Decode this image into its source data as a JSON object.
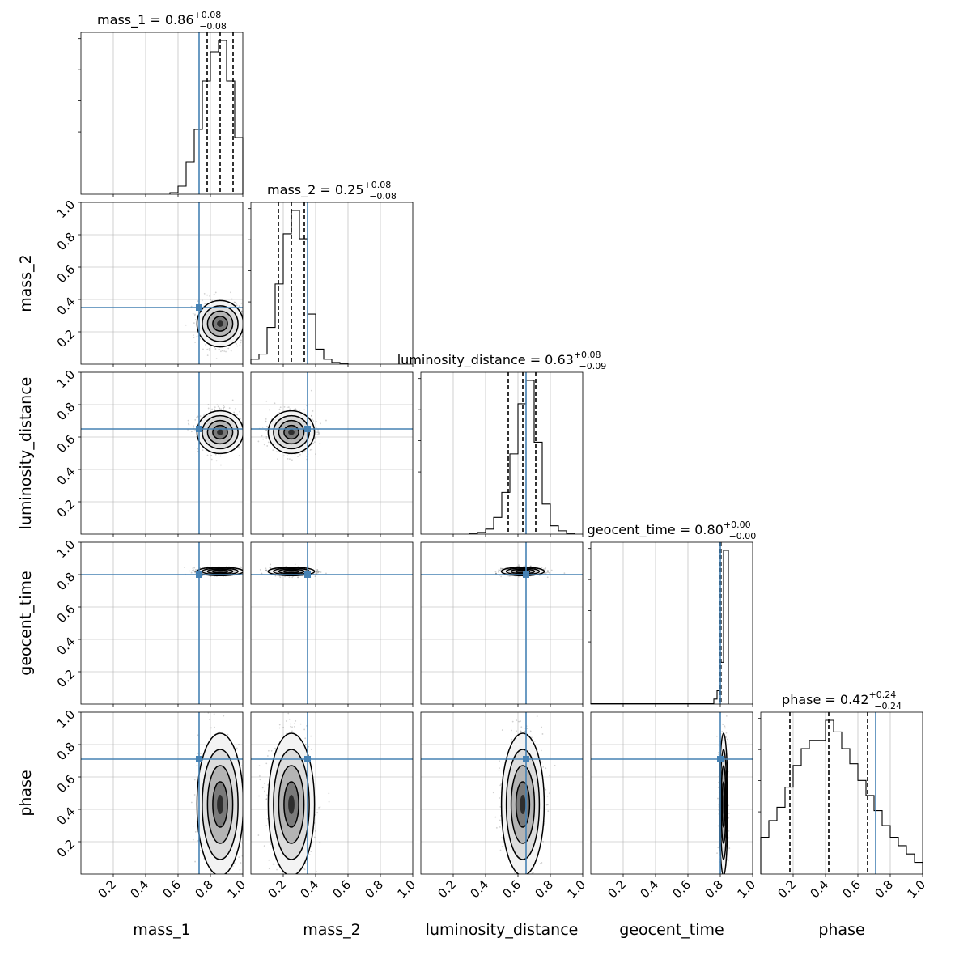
{
  "chart_data": {
    "type": "corner",
    "parameters": [
      "mass_1",
      "mass_2",
      "luminosity_distance",
      "geocent_time",
      "phase"
    ],
    "axis_range": [
      0,
      1
    ],
    "ticks": [
      0.2,
      0.4,
      0.6,
      0.8,
      1.0
    ],
    "tick_labels": [
      "0.2",
      "0.4",
      "0.6",
      "0.8",
      "1.0"
    ],
    "grid": true,
    "truth_color": "#4682b4",
    "truths": {
      "mass_1": 0.73,
      "mass_2": 0.35,
      "luminosity_distance": 0.65,
      "geocent_time": 0.8,
      "phase": 0.71
    },
    "marginals": [
      {
        "param": "mass_1",
        "title_prefix": "mass_1 = ",
        "median_label": "0.86",
        "plus": "+0.08",
        "minus": "−0.08",
        "quantiles": [
          0.78,
          0.86,
          0.94
        ],
        "bin_edges": [
          0.55,
          0.6,
          0.65,
          0.7,
          0.75,
          0.8,
          0.85,
          0.9,
          0.95,
          1.0
        ],
        "counts": [
          0.01,
          0.05,
          0.2,
          0.4,
          0.7,
          0.88,
          0.95,
          0.7,
          0.35
        ]
      },
      {
        "param": "mass_2",
        "title_prefix": "mass_2 = ",
        "median_label": "0.25",
        "plus": "+0.08",
        "minus": "−0.08",
        "quantiles": [
          0.17,
          0.25,
          0.33
        ],
        "bin_edges": [
          0.0,
          0.05,
          0.1,
          0.15,
          0.2,
          0.25,
          0.3,
          0.35,
          0.4,
          0.45,
          0.5,
          0.55,
          0.6
        ],
        "counts": [
          0.03,
          0.06,
          0.22,
          0.48,
          0.78,
          0.92,
          0.75,
          0.3,
          0.09,
          0.03,
          0.01,
          0.005
        ]
      },
      {
        "param": "luminosity_distance",
        "title_prefix": "luminosity_distance = ",
        "median_label": "0.63",
        "plus": "+0.08",
        "minus": "−0.09",
        "quantiles": [
          0.54,
          0.63,
          0.71
        ],
        "bin_edges": [
          0.3,
          0.35,
          0.4,
          0.45,
          0.5,
          0.55,
          0.6,
          0.65,
          0.7,
          0.75,
          0.8,
          0.85,
          0.9,
          0.95
        ],
        "counts": [
          0.005,
          0.01,
          0.03,
          0.1,
          0.25,
          0.48,
          0.78,
          0.92,
          0.55,
          0.18,
          0.05,
          0.02,
          0.005
        ]
      },
      {
        "param": "geocent_time",
        "title_prefix": "geocent_time = ",
        "median_label": "0.80",
        "plus": "+0.00",
        "minus": "−0.00",
        "quantiles": [
          0.796,
          0.8,
          0.804
        ],
        "bin_edges": [
          0.0,
          0.76,
          0.78,
          0.8,
          0.82,
          0.85
        ],
        "counts": [
          0.002,
          0.03,
          0.08,
          0.25,
          0.92
        ]
      },
      {
        "param": "phase",
        "title_prefix": "phase = ",
        "median_label": "0.42",
        "plus": "+0.24",
        "minus": "−0.24",
        "quantiles": [
          0.18,
          0.42,
          0.66
        ],
        "bin_edges": [
          0.0,
          0.05,
          0.1,
          0.15,
          0.2,
          0.25,
          0.3,
          0.35,
          0.4,
          0.45,
          0.5,
          0.55,
          0.6,
          0.65,
          0.7,
          0.75,
          0.8,
          0.85,
          0.9,
          0.95,
          1.0
        ],
        "counts": [
          0.22,
          0.32,
          0.4,
          0.52,
          0.65,
          0.75,
          0.8,
          0.8,
          0.92,
          0.85,
          0.75,
          0.66,
          0.56,
          0.47,
          0.38,
          0.29,
          0.22,
          0.17,
          0.12,
          0.07
        ]
      }
    ],
    "posterior_modes": {
      "mass_1": 0.86,
      "mass_2": 0.25,
      "luminosity_distance": 0.63,
      "geocent_time": 0.82,
      "phase": 0.43
    },
    "posterior_sigmas": {
      "mass_1": 0.065,
      "mass_2": 0.065,
      "luminosity_distance": 0.06,
      "geocent_time": 0.012,
      "phase": 0.2
    }
  }
}
